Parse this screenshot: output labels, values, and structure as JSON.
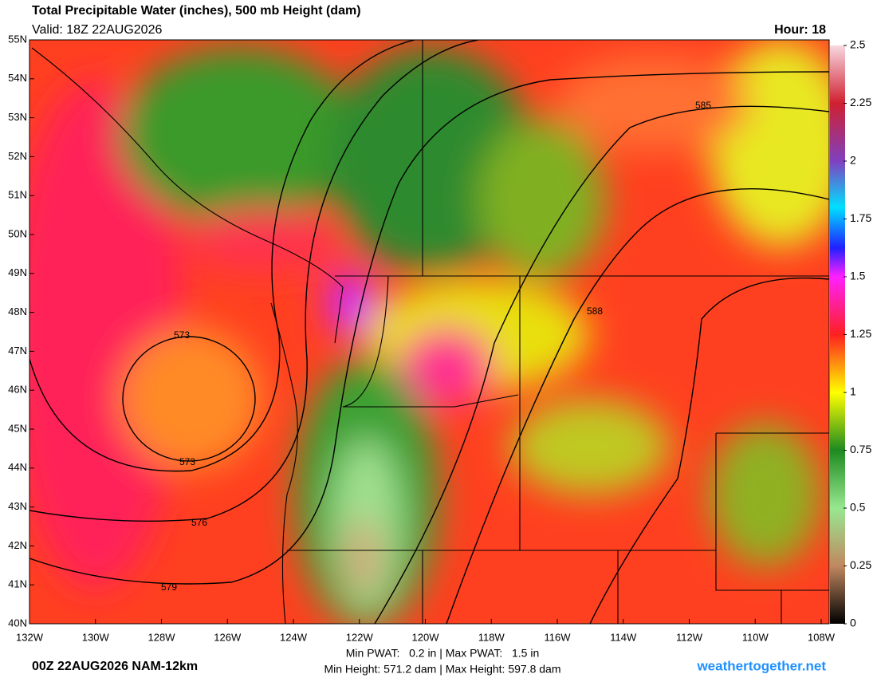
{
  "header": {
    "title": "Total Precipitable Water (inches), 500 mb Height (dam)",
    "valid": "Valid: 18Z 22AUG2026",
    "hour": "Hour: 18"
  },
  "map": {
    "lat_labels": [
      "55N",
      "54N",
      "53N",
      "52N",
      "51N",
      "50N",
      "49N",
      "48N",
      "47N",
      "46N",
      "45N",
      "44N",
      "43N",
      "42N",
      "41N",
      "40N"
    ],
    "lon_labels": [
      "132W",
      "130W",
      "128W",
      "126W",
      "124W",
      "122W",
      "120W",
      "118W",
      "116W",
      "114W",
      "112W",
      "110W",
      "108W"
    ],
    "contour_labels": [
      "573",
      "573",
      "576",
      "579",
      "585",
      "588"
    ]
  },
  "colorbar": {
    "range": [
      0,
      2.5
    ],
    "ticks": [
      2.5,
      2.25,
      2,
      1.75,
      1.5,
      1.25,
      1,
      0.75,
      0.5,
      0.25,
      0
    ]
  },
  "footer": {
    "run": "00Z 22AUG2026 NAM-12km",
    "pwat": "Min PWAT:   0.2 in | Max PWAT:   1.5 in",
    "height": "Min Height: 571.2 dam | Max Height: 597.8 dam",
    "site": "weathertogether.net"
  }
}
